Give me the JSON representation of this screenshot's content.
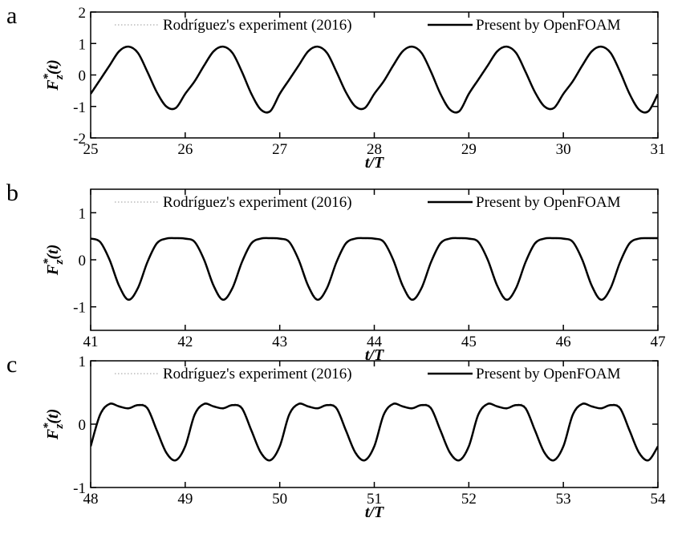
{
  "chart_data": [
    {
      "type": "line",
      "panel_label": "a",
      "xlabel": "t/T",
      "ylabel": {
        "base": "F",
        "sup": "*",
        "sub": "z",
        "rest": "(t)"
      },
      "xlim": [
        25,
        31
      ],
      "ylim": [
        -2,
        2
      ],
      "xticks": [
        25,
        26,
        27,
        28,
        29,
        30,
        31
      ],
      "yticks": [
        -2,
        -1,
        0,
        1,
        2
      ],
      "x": [
        25,
        25.1,
        25.2,
        25.3,
        25.4,
        25.5,
        25.6,
        25.7,
        25.8,
        25.9,
        26,
        26.1,
        26.2,
        26.3,
        26.4,
        26.5,
        26.6,
        26.7,
        26.8,
        26.9,
        27,
        27.1,
        27.2,
        27.3,
        27.4,
        27.5,
        27.6,
        27.7,
        27.8,
        27.9,
        28,
        28.1,
        28.2,
        28.3,
        28.4,
        28.5,
        28.6,
        28.7,
        28.8,
        28.9,
        29,
        29.1,
        29.2,
        29.3,
        29.4,
        29.5,
        29.6,
        29.7,
        29.8,
        29.9,
        30,
        30.1,
        30.2,
        30.3,
        30.4,
        30.5,
        30.6,
        30.7,
        30.8,
        30.9,
        31
      ],
      "series": [
        {
          "name": "Rodríguez's experiment (2016)",
          "color": "#bbbbbb",
          "dash": "dotted",
          "values": [
            -0.58,
            -0.12,
            0.32,
            0.76,
            0.89,
            0.68,
            0.08,
            -0.57,
            -1.02,
            -1.06,
            -0.62,
            -0.18,
            0.31,
            0.74,
            0.88,
            0.69,
            0.12,
            -0.58,
            -1.09,
            -1.17,
            -0.58,
            -0.12,
            0.32,
            0.76,
            0.89,
            0.68,
            0.08,
            -0.57,
            -1.02,
            -1.06,
            -0.62,
            -0.18,
            0.31,
            0.74,
            0.88,
            0.69,
            0.12,
            -0.58,
            -1.09,
            -1.17,
            -0.58,
            -0.12,
            0.32,
            0.76,
            0.89,
            0.68,
            0.08,
            -0.57,
            -1.02,
            -1.06,
            -0.62,
            -0.18,
            0.31,
            0.74,
            0.88,
            0.69,
            0.12,
            -0.58,
            -1.09,
            -1.17,
            -0.58
          ]
        },
        {
          "name": "Present by OpenFOAM",
          "color": "#000000",
          "dash": "solid",
          "values": [
            -0.6,
            -0.15,
            0.3,
            0.75,
            0.9,
            0.7,
            0.1,
            -0.55,
            -1.0,
            -1.05,
            -0.6,
            -0.2,
            0.3,
            0.75,
            0.9,
            0.7,
            0.1,
            -0.6,
            -1.1,
            -1.15,
            -0.6,
            -0.15,
            0.3,
            0.75,
            0.9,
            0.7,
            0.1,
            -0.55,
            -1.0,
            -1.05,
            -0.6,
            -0.2,
            0.3,
            0.75,
            0.9,
            0.7,
            0.1,
            -0.6,
            -1.1,
            -1.15,
            -0.6,
            -0.15,
            0.3,
            0.75,
            0.9,
            0.7,
            0.1,
            -0.55,
            -1.0,
            -1.05,
            -0.6,
            -0.2,
            0.3,
            0.75,
            0.9,
            0.7,
            0.1,
            -0.6,
            -1.1,
            -1.15,
            -0.6
          ]
        }
      ]
    },
    {
      "type": "line",
      "panel_label": "b",
      "xlabel": "t/T",
      "ylabel": {
        "base": "F",
        "sup": "*",
        "sub": "z",
        "rest": "(t)"
      },
      "xlim": [
        41,
        47
      ],
      "ylim": [
        -1.5,
        1.5
      ],
      "xticks": [
        41,
        42,
        43,
        44,
        45,
        46,
        47
      ],
      "yticks": [
        -1,
        0,
        1
      ],
      "x": [
        41,
        41.1,
        41.2,
        41.3,
        41.4,
        41.5,
        41.6,
        41.7,
        41.8,
        41.9,
        42,
        42.1,
        42.2,
        42.3,
        42.4,
        42.5,
        42.6,
        42.7,
        42.8,
        42.9,
        43,
        43.1,
        43.2,
        43.3,
        43.4,
        43.5,
        43.6,
        43.7,
        43.8,
        43.9,
        44,
        44.1,
        44.2,
        44.3,
        44.4,
        44.5,
        44.6,
        44.7,
        44.8,
        44.9,
        45,
        45.1,
        45.2,
        45.3,
        45.4,
        45.5,
        45.6,
        45.7,
        45.8,
        45.9,
        46,
        46.1,
        46.2,
        46.3,
        46.4,
        46.5,
        46.6,
        46.7,
        46.8,
        46.9,
        47
      ],
      "series": [
        {
          "name": "Rodríguez's experiment (2016)",
          "color": "#bbbbbb",
          "dash": "dotted",
          "values": [
            0.44,
            0.37,
            0.02,
            -0.52,
            -0.83,
            -0.62,
            -0.07,
            0.33,
            0.46,
            0.45,
            0.44,
            0.37,
            0.02,
            -0.52,
            -0.83,
            -0.62,
            -0.07,
            0.33,
            0.46,
            0.45,
            0.44,
            0.37,
            0.02,
            -0.52,
            -0.83,
            -0.62,
            -0.07,
            0.33,
            0.46,
            0.45,
            0.44,
            0.37,
            0.02,
            -0.52,
            -0.83,
            -0.62,
            -0.07,
            0.33,
            0.46,
            0.45,
            0.44,
            0.37,
            0.02,
            -0.52,
            -0.83,
            -0.62,
            -0.07,
            0.33,
            0.46,
            0.45,
            0.44,
            0.37,
            0.02,
            -0.52,
            -0.83,
            -0.62,
            -0.07,
            0.33,
            0.46,
            0.45,
            0.45
          ]
        },
        {
          "name": "Present by OpenFOAM",
          "color": "#000000",
          "dash": "solid",
          "values": [
            0.45,
            0.38,
            0.0,
            -0.55,
            -0.85,
            -0.6,
            -0.05,
            0.35,
            0.45,
            0.46,
            0.45,
            0.38,
            0.0,
            -0.55,
            -0.85,
            -0.6,
            -0.05,
            0.35,
            0.45,
            0.46,
            0.45,
            0.38,
            0.0,
            -0.55,
            -0.85,
            -0.6,
            -0.05,
            0.35,
            0.45,
            0.46,
            0.45,
            0.38,
            0.0,
            -0.55,
            -0.85,
            -0.6,
            -0.05,
            0.35,
            0.45,
            0.46,
            0.45,
            0.38,
            0.0,
            -0.55,
            -0.85,
            -0.6,
            -0.05,
            0.35,
            0.45,
            0.46,
            0.45,
            0.38,
            0.0,
            -0.55,
            -0.85,
            -0.6,
            -0.05,
            0.35,
            0.45,
            0.46,
            0.46
          ]
        }
      ]
    },
    {
      "type": "line",
      "panel_label": "c",
      "xlabel": "t/T",
      "ylabel": {
        "base": "F",
        "sup": "*",
        "sub": "z",
        "rest": "(t)"
      },
      "xlim": [
        48,
        54
      ],
      "ylim": [
        -1,
        1
      ],
      "xticks": [
        48,
        49,
        50,
        51,
        52,
        53,
        54
      ],
      "yticks": [
        -1,
        0,
        1
      ],
      "x": [
        48,
        48.1,
        48.2,
        48.3,
        48.4,
        48.5,
        48.6,
        48.7,
        48.8,
        48.9,
        49,
        49.1,
        49.2,
        49.3,
        49.4,
        49.5,
        49.6,
        49.7,
        49.8,
        49.9,
        50,
        50.1,
        50.2,
        50.3,
        50.4,
        50.5,
        50.6,
        50.7,
        50.8,
        50.9,
        51,
        51.1,
        51.2,
        51.3,
        51.4,
        51.5,
        51.6,
        51.7,
        51.8,
        51.9,
        52,
        52.1,
        52.2,
        52.3,
        52.4,
        52.5,
        52.6,
        52.7,
        52.8,
        52.9,
        53,
        53.1,
        53.2,
        53.3,
        53.4,
        53.5,
        53.6,
        53.7,
        53.8,
        53.9,
        54
      ],
      "series": [
        {
          "name": "Rodríguez's experiment (2016)",
          "color": "#bbbbbb",
          "dash": "dotted",
          "values": [
            -0.33,
            0.13,
            0.31,
            0.29,
            0.24,
            0.31,
            0.27,
            -0.08,
            -0.43,
            -0.56,
            -0.33,
            0.13,
            0.31,
            0.29,
            0.24,
            0.31,
            0.27,
            -0.08,
            -0.43,
            -0.56,
            -0.33,
            0.13,
            0.31,
            0.29,
            0.24,
            0.31,
            0.27,
            -0.08,
            -0.43,
            -0.56,
            -0.33,
            0.13,
            0.31,
            0.29,
            0.24,
            0.31,
            0.27,
            -0.08,
            -0.43,
            -0.56,
            -0.33,
            0.13,
            0.31,
            0.29,
            0.24,
            0.31,
            0.27,
            -0.08,
            -0.43,
            -0.56,
            -0.33,
            0.13,
            0.31,
            0.29,
            0.24,
            0.31,
            0.27,
            -0.08,
            -0.43,
            -0.56,
            -0.34
          ]
        },
        {
          "name": "Present by OpenFOAM",
          "color": "#000000",
          "dash": "solid",
          "values": [
            -0.35,
            0.15,
            0.32,
            0.28,
            0.25,
            0.3,
            0.25,
            -0.1,
            -0.45,
            -0.57,
            -0.35,
            0.15,
            0.32,
            0.28,
            0.25,
            0.3,
            0.25,
            -0.1,
            -0.45,
            -0.57,
            -0.35,
            0.15,
            0.32,
            0.28,
            0.25,
            0.3,
            0.25,
            -0.1,
            -0.45,
            -0.57,
            -0.35,
            0.15,
            0.32,
            0.28,
            0.25,
            0.3,
            0.25,
            -0.1,
            -0.45,
            -0.57,
            -0.35,
            0.15,
            0.32,
            0.28,
            0.25,
            0.3,
            0.25,
            -0.1,
            -0.45,
            -0.57,
            -0.35,
            0.15,
            0.32,
            0.28,
            0.25,
            0.3,
            0.25,
            -0.1,
            -0.45,
            -0.57,
            -0.35
          ]
        }
      ]
    }
  ]
}
